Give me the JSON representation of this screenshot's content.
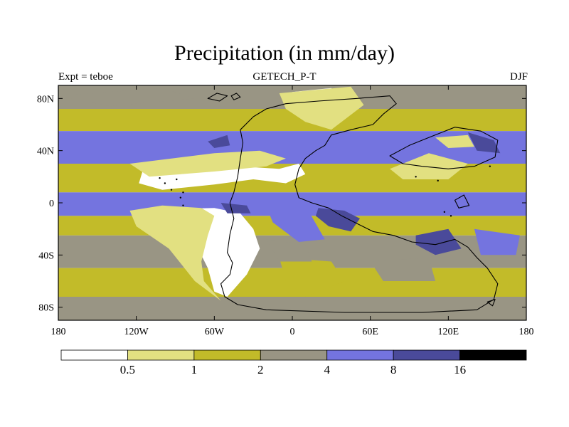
{
  "title": "Precipitation (in mm/day)",
  "subtitle_left": "Expt = teboe",
  "subtitle_center": "GETECH_P-T",
  "subtitle_right": "DJF",
  "colors": {
    "lt_0.5": "#ffffff",
    "0.5_1": "#e2e081",
    "1_2": "#c2bb29",
    "2_4": "#999584",
    "4_8": "#7474df",
    "8_16": "#4a4a9a",
    "gt_16": "#000000"
  },
  "chart_data": {
    "type": "heatmap",
    "variable": "Precipitation",
    "units": "mm/day",
    "season": "DJF",
    "experiment": "teboe",
    "source": "GETECH_P-T",
    "xlim": [
      -180,
      180
    ],
    "ylim": [
      -90,
      90
    ],
    "x_ticks": [
      {
        "value": -180,
        "label": "180"
      },
      {
        "value": -120,
        "label": "120W"
      },
      {
        "value": -60,
        "label": "60W"
      },
      {
        "value": 0,
        "label": "0"
      },
      {
        "value": 60,
        "label": "60E"
      },
      {
        "value": 120,
        "label": "120E"
      },
      {
        "value": 180,
        "label": "180"
      }
    ],
    "y_ticks": [
      {
        "value": 80,
        "label": "80N"
      },
      {
        "value": 40,
        "label": "40N"
      },
      {
        "value": 0,
        "label": "0"
      },
      {
        "value": -40,
        "label": "40S"
      },
      {
        "value": -80,
        "label": "80S"
      }
    ],
    "colorbar": {
      "boundaries": [
        0.5,
        1,
        2,
        4,
        8,
        16
      ],
      "labels": [
        "0.5",
        "1",
        "2",
        "4",
        "8",
        "16"
      ],
      "bins": [
        {
          "range": "<0.5",
          "color_key": "lt_0.5"
        },
        {
          "range": "0.5-1",
          "color_key": "0.5_1"
        },
        {
          "range": "1-2",
          "color_key": "1_2"
        },
        {
          "range": "2-4",
          "color_key": "2_4"
        },
        {
          "range": "4-8",
          "color_key": "4_8"
        },
        {
          "range": "8-16",
          "color_key": "8_16"
        },
        {
          "range": ">16",
          "color_key": "gt_16"
        }
      ]
    },
    "bands": [
      {
        "lat_max": 90,
        "lat_min": 72,
        "level": "2_4"
      },
      {
        "lat_max": 72,
        "lat_min": 55,
        "level": "1_2"
      },
      {
        "lat_max": 55,
        "lat_min": 30,
        "level": "4_8"
      },
      {
        "lat_max": 30,
        "lat_min": 8,
        "level": "1_2"
      },
      {
        "lat_max": 8,
        "lat_min": -10,
        "level": "4_8"
      },
      {
        "lat_max": -10,
        "lat_min": -25,
        "level": "1_2"
      },
      {
        "lat_max": -25,
        "lat_min": -50,
        "level": "2_4"
      },
      {
        "lat_max": -50,
        "lat_min": -72,
        "level": "1_2"
      },
      {
        "lat_max": -72,
        "lat_min": -90,
        "level": "2_4"
      }
    ],
    "regions": [
      {
        "level": "lt_0.5",
        "lonlat": [
          [
            -115,
            25
          ],
          [
            -90,
            30
          ],
          [
            -60,
            32
          ],
          [
            -40,
            28
          ],
          [
            -10,
            26
          ],
          [
            5,
            30
          ],
          [
            10,
            22
          ],
          [
            -5,
            15
          ],
          [
            -30,
            18
          ],
          [
            -60,
            14
          ],
          [
            -100,
            10
          ],
          [
            -118,
            15
          ]
        ]
      },
      {
        "level": "0.5_1",
        "lonlat": [
          [
            -125,
            30
          ],
          [
            -60,
            38
          ],
          [
            -25,
            40
          ],
          [
            -5,
            34
          ],
          [
            -20,
            28
          ],
          [
            -60,
            24
          ],
          [
            -110,
            20
          ]
        ]
      },
      {
        "level": "lt_0.5",
        "lonlat": [
          [
            -105,
            -5
          ],
          [
            -60,
            -4
          ],
          [
            -40,
            -8
          ],
          [
            -30,
            -20
          ],
          [
            -25,
            -35
          ],
          [
            -35,
            -55
          ],
          [
            -50,
            -72
          ],
          [
            -60,
            -68
          ],
          [
            -65,
            -50
          ],
          [
            -75,
            -30
          ],
          [
            -95,
            -20
          ],
          [
            -120,
            -12
          ]
        ]
      },
      {
        "level": "0.5_1",
        "lonlat": [
          [
            -125,
            -6
          ],
          [
            -100,
            -2
          ],
          [
            -70,
            -4
          ],
          [
            -60,
            -10
          ],
          [
            -65,
            -25
          ],
          [
            -70,
            -45
          ],
          [
            -68,
            -60
          ],
          [
            -55,
            -75
          ],
          [
            -75,
            -60
          ],
          [
            -95,
            -35
          ],
          [
            -120,
            -18
          ]
        ]
      },
      {
        "level": "lt_0.5",
        "lonlat": [
          [
            0,
            85
          ],
          [
            30,
            88
          ],
          [
            40,
            78
          ],
          [
            30,
            62
          ],
          [
            20,
            70
          ],
          [
            5,
            74
          ]
        ]
      },
      {
        "level": "0.5_1",
        "lonlat": [
          [
            -10,
            84
          ],
          [
            45,
            89
          ],
          [
            55,
            75
          ],
          [
            30,
            56
          ],
          [
            10,
            62
          ],
          [
            -5,
            72
          ]
        ]
      },
      {
        "level": "lt_0.5",
        "lonlat": [
          [
            85,
            28
          ],
          [
            105,
            33
          ],
          [
            125,
            30
          ],
          [
            118,
            22
          ],
          [
            95,
            22
          ]
        ]
      },
      {
        "level": "0.5_1",
        "lonlat": [
          [
            75,
            26
          ],
          [
            105,
            38
          ],
          [
            135,
            30
          ],
          [
            120,
            18
          ],
          [
            85,
            18
          ]
        ]
      },
      {
        "level": "0.5_1",
        "lonlat": [
          [
            110,
            50
          ],
          [
            135,
            52
          ],
          [
            140,
            43
          ],
          [
            120,
            42
          ]
        ]
      },
      {
        "level": "8_16",
        "lonlat": [
          [
            20,
            -4
          ],
          [
            40,
            -6
          ],
          [
            52,
            -12
          ],
          [
            45,
            -22
          ],
          [
            28,
            -18
          ],
          [
            18,
            -10
          ]
        ]
      },
      {
        "level": "8_16",
        "lonlat": [
          [
            135,
            54
          ],
          [
            155,
            48
          ],
          [
            160,
            38
          ],
          [
            142,
            40
          ]
        ]
      },
      {
        "level": "8_16",
        "lonlat": [
          [
            95,
            -25
          ],
          [
            120,
            -20
          ],
          [
            130,
            -35
          ],
          [
            110,
            -40
          ],
          [
            95,
            -32
          ]
        ]
      },
      {
        "level": "8_16",
        "lonlat": [
          [
            -65,
            47
          ],
          [
            -50,
            52
          ],
          [
            -48,
            44
          ],
          [
            -60,
            42
          ]
        ]
      },
      {
        "level": "8_16",
        "lonlat": [
          [
            -55,
            0
          ],
          [
            -35,
            -2
          ],
          [
            -32,
            -8
          ],
          [
            -50,
            -8
          ]
        ]
      },
      {
        "level": "4_8",
        "lonlat": [
          [
            -20,
            -3
          ],
          [
            10,
            -2
          ],
          [
            25,
            -28
          ],
          [
            5,
            -30
          ],
          [
            -15,
            -15
          ]
        ]
      },
      {
        "level": "1_2",
        "lonlat": [
          [
            -10,
            -42
          ],
          [
            30,
            -45
          ],
          [
            40,
            -60
          ],
          [
            10,
            -72
          ],
          [
            -5,
            -60
          ]
        ]
      },
      {
        "level": "2_4",
        "lonlat": [
          [
            -20,
            -28
          ],
          [
            10,
            -32
          ],
          [
            15,
            -45
          ],
          [
            -10,
            -45
          ]
        ]
      },
      {
        "level": "2_4",
        "lonlat": [
          [
            60,
            -45
          ],
          [
            105,
            -42
          ],
          [
            110,
            -60
          ],
          [
            70,
            -60
          ]
        ]
      },
      {
        "level": "4_8",
        "lonlat": [
          [
            140,
            -20
          ],
          [
            175,
            -25
          ],
          [
            172,
            -40
          ],
          [
            145,
            -40
          ]
        ]
      },
      {
        "level": "2_4",
        "lonlat": [
          [
            -180,
            82
          ],
          [
            -100,
            88
          ],
          [
            -75,
            80
          ],
          [
            -140,
            74
          ]
        ]
      }
    ],
    "coastlines": [
      {
        "name": "supercontinent",
        "lonlat": [
          [
            -40,
            56
          ],
          [
            -30,
            66
          ],
          [
            -20,
            72
          ],
          [
            -5,
            76
          ],
          [
            20,
            78
          ],
          [
            50,
            80
          ],
          [
            75,
            82
          ],
          [
            80,
            76
          ],
          [
            70,
            68
          ],
          [
            62,
            60
          ],
          [
            45,
            56
          ],
          [
            30,
            52
          ],
          [
            25,
            44
          ],
          [
            18,
            40
          ],
          [
            10,
            34
          ],
          [
            5,
            26
          ],
          [
            2,
            14
          ],
          [
            5,
            4
          ],
          [
            15,
            0
          ],
          [
            28,
            -4
          ],
          [
            38,
            -10
          ],
          [
            48,
            -15
          ],
          [
            62,
            -22
          ],
          [
            78,
            -25
          ],
          [
            92,
            -30
          ],
          [
            110,
            -32
          ],
          [
            125,
            -28
          ],
          [
            135,
            -34
          ],
          [
            142,
            -42
          ],
          [
            150,
            -50
          ],
          [
            158,
            -62
          ],
          [
            155,
            -74
          ],
          [
            142,
            -82
          ],
          [
            100,
            -84
          ],
          [
            40,
            -84
          ],
          [
            -20,
            -82
          ],
          [
            -42,
            -78
          ],
          [
            -52,
            -72
          ],
          [
            -55,
            -62
          ],
          [
            -48,
            -55
          ],
          [
            -46,
            -46
          ],
          [
            -50,
            -38
          ],
          [
            -48,
            -24
          ],
          [
            -45,
            -12
          ],
          [
            -48,
            0
          ],
          [
            -45,
            8
          ],
          [
            -42,
            20
          ],
          [
            -40,
            34
          ],
          [
            -38,
            46
          ],
          [
            -40,
            56
          ]
        ]
      },
      {
        "name": "asia-block",
        "lonlat": [
          [
            75,
            36
          ],
          [
            90,
            44
          ],
          [
            105,
            50
          ],
          [
            125,
            58
          ],
          [
            145,
            55
          ],
          [
            158,
            48
          ],
          [
            156,
            35
          ],
          [
            140,
            28
          ],
          [
            120,
            26
          ],
          [
            100,
            28
          ],
          [
            85,
            30
          ]
        ]
      },
      {
        "name": "north-island",
        "lonlat": [
          [
            -65,
            80
          ],
          [
            -58,
            84
          ],
          [
            -50,
            82
          ],
          [
            -56,
            78
          ]
        ]
      },
      {
        "name": "north-islet",
        "lonlat": [
          [
            -47,
            82
          ],
          [
            -43,
            84
          ],
          [
            -40,
            81
          ],
          [
            -45,
            79
          ]
        ]
      },
      {
        "name": "east-islet",
        "lonlat": [
          [
            125,
            2
          ],
          [
            132,
            6
          ],
          [
            136,
            -2
          ],
          [
            128,
            -4
          ]
        ]
      },
      {
        "name": "south-islet",
        "lonlat": [
          [
            150,
            -76
          ],
          [
            156,
            -74
          ],
          [
            154,
            -79
          ]
        ]
      }
    ],
    "island_dots": [
      [
        -102,
        19
      ],
      [
        -98,
        15
      ],
      [
        -93,
        10
      ],
      [
        -84,
        8
      ],
      [
        -86,
        4
      ],
      [
        -84,
        -2
      ],
      [
        -89,
        18
      ],
      [
        95,
        20
      ],
      [
        112,
        17
      ],
      [
        152,
        28
      ],
      [
        117,
        -7
      ],
      [
        122,
        -10
      ]
    ]
  }
}
